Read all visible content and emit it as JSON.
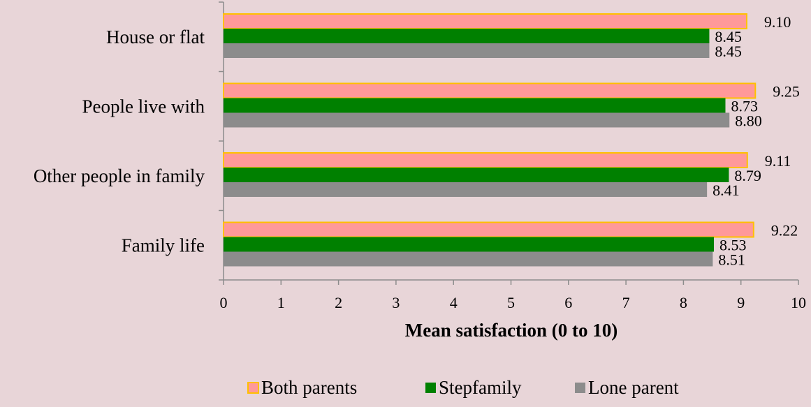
{
  "chart_data": {
    "type": "bar",
    "orientation": "horizontal",
    "categories": [
      "House or flat",
      "People live with",
      "Other people in family",
      "Family life"
    ],
    "series": [
      {
        "name": "Both parents",
        "values": [
          9.1,
          9.25,
          9.11,
          9.22
        ],
        "labels": [
          "9.10",
          "9.25",
          "9.11",
          "9.22"
        ],
        "color": "#ff9999",
        "border": "#ffc000"
      },
      {
        "name": "Stepfamily",
        "values": [
          8.45,
          8.73,
          8.79,
          8.53
        ],
        "labels": [
          "8.45",
          "8.73",
          "8.79",
          "8.53"
        ],
        "color": "#008000"
      },
      {
        "name": "Lone parent",
        "values": [
          8.45,
          8.8,
          8.41,
          8.51
        ],
        "labels": [
          "8.45",
          "8.80",
          "8.41",
          "8.51"
        ],
        "color": "#8c8c8c"
      }
    ],
    "xlabel": "Mean satisfaction (0 to 10)",
    "xlim": [
      0,
      10
    ],
    "xticks": [
      "0",
      "1",
      "2",
      "3",
      "4",
      "5",
      "6",
      "7",
      "8",
      "9",
      "10"
    ],
    "grid": false,
    "legend_position": "bottom"
  },
  "colors": {
    "background": "#e8d5d8",
    "axis": "#8c8c8c"
  }
}
